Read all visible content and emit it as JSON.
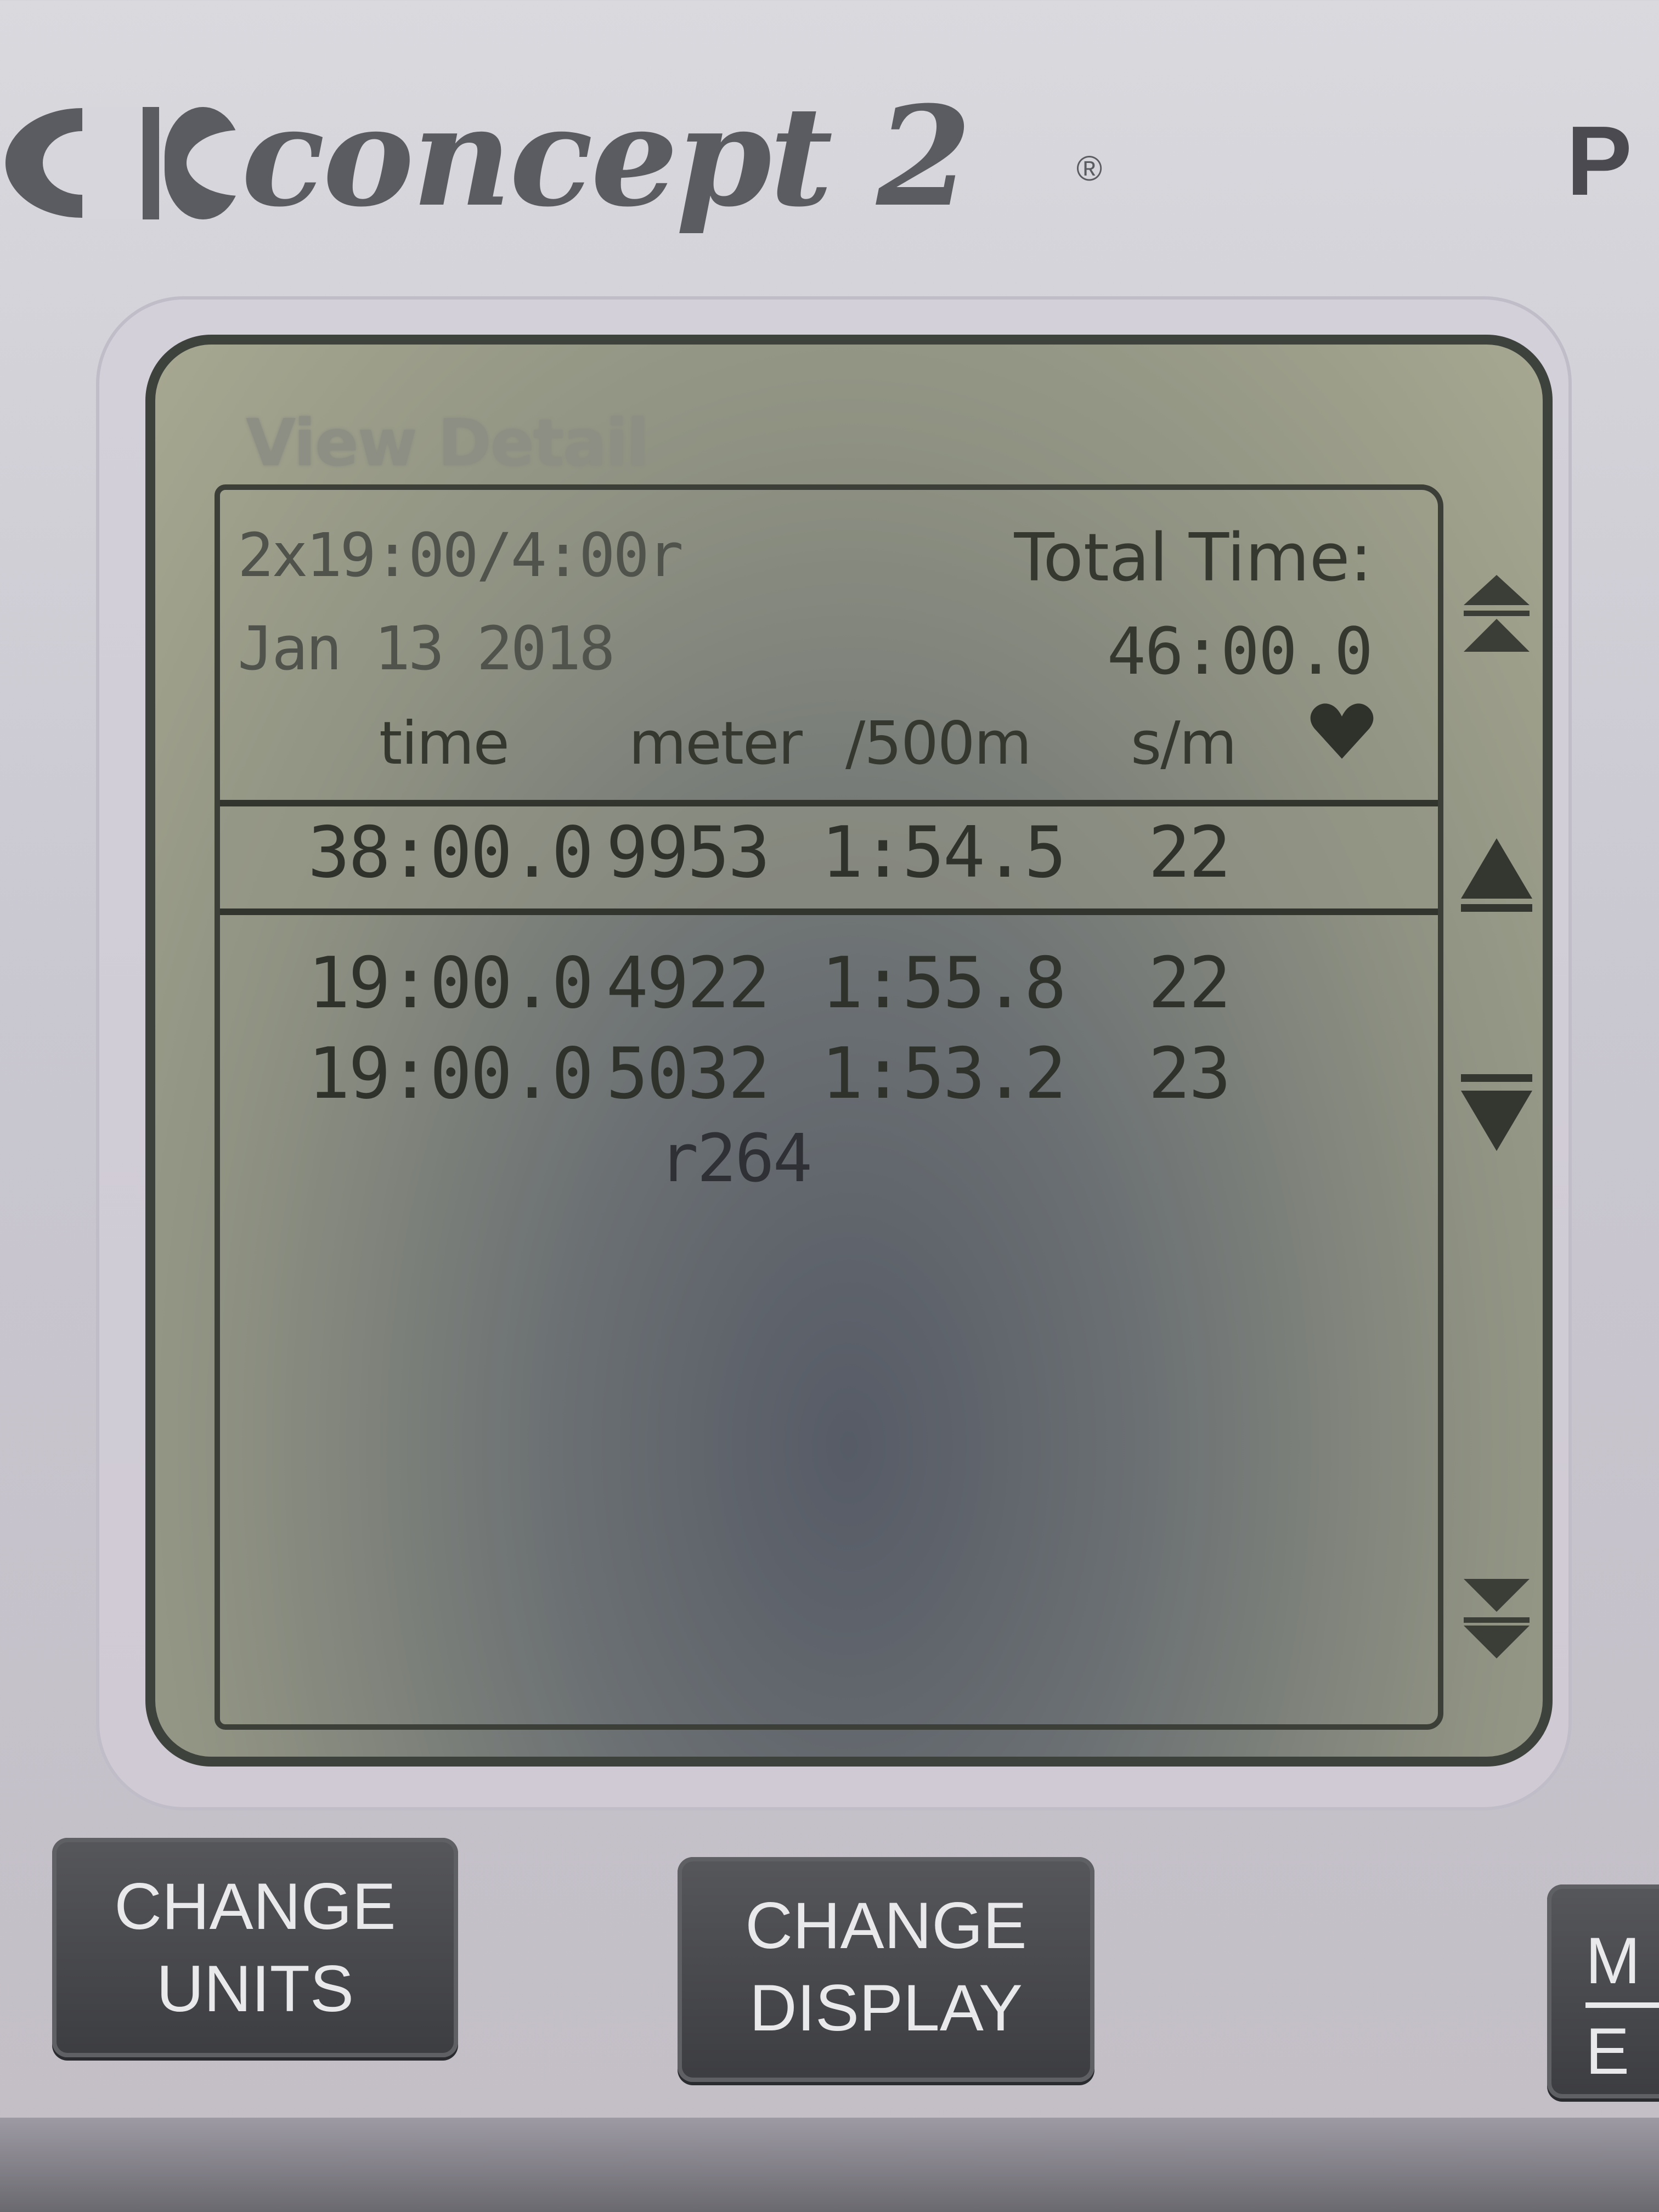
{
  "brand": {
    "name": "concept 2",
    "registered": "®",
    "corner_letter": "P"
  },
  "screen": {
    "title": "View Detail",
    "workout": "2x19:00/4:00r",
    "date": "Jan 13 2018",
    "total_time_label": "Total Time:",
    "total_time_value": "46:00.0",
    "columns": {
      "time": "time",
      "meter": "meter",
      "pace": "/500m",
      "spm": "s/m",
      "heart": "heart-icon"
    },
    "summary": {
      "time": "38:00.0",
      "meter": "9953",
      "pace": "1:54.5",
      "spm": "22"
    },
    "intervals": [
      {
        "time": "19:00.0",
        "meter": "4922",
        "pace": "1:55.8",
        "spm": "22"
      },
      {
        "time": "19:00.0",
        "meter": "5032",
        "pace": "1:53.2",
        "spm": "23"
      }
    ],
    "rest_meters": "r264",
    "scroll_icons": [
      "page-up-icon",
      "up-arrow-icon",
      "down-arrow-icon",
      "page-down-icon"
    ]
  },
  "buttons": {
    "change_units": [
      "CHANGE",
      "UNITS"
    ],
    "change_display": [
      "CHANGE",
      "DISPLAY"
    ],
    "partial": [
      "M",
      "E"
    ]
  },
  "colors": {
    "lcd": "#9a9c88",
    "lcd_text": "#2f322b",
    "button": "#46474b",
    "button_text": "#e9e9ec"
  }
}
